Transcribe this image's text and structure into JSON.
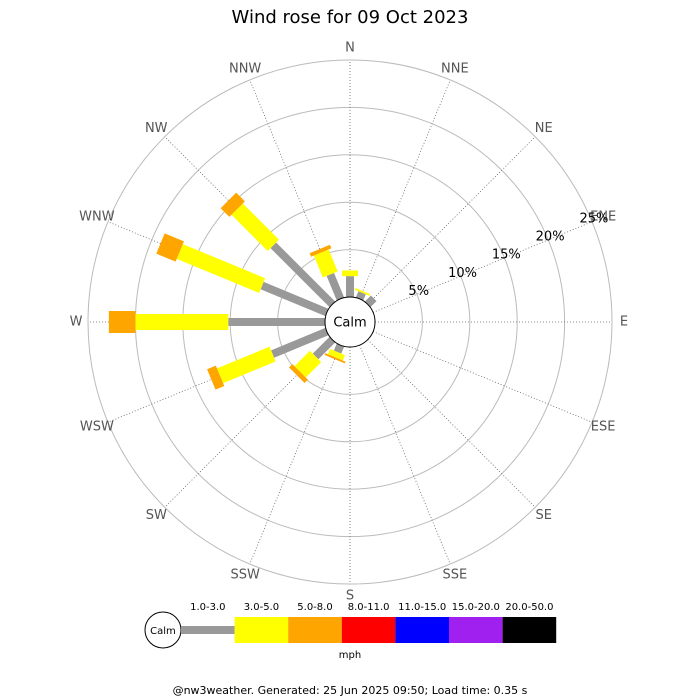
{
  "chart_data": {
    "type": "windrose",
    "title": "Wind rose for 09 Oct 2023",
    "calm_label": "Calm",
    "categories": [
      "N",
      "NNE",
      "NE",
      "ENE",
      "E",
      "ESE",
      "SE",
      "SSE",
      "S",
      "SSW",
      "SW",
      "WSW",
      "W",
      "WNW",
      "NW",
      "NNW"
    ],
    "series": [
      {
        "name": "1.0-3.0",
        "color": "#999999",
        "values": [
          2.2,
          0.7,
          0.9,
          0,
          0,
          0,
          0,
          0,
          0,
          0.8,
          2.5,
          6.2,
          10.2,
          7.4,
          8.8,
          2.8
        ]
      },
      {
        "name": "3.0-5.0",
        "color": "#ffff00",
        "values": [
          0.6,
          0.2,
          0,
          0,
          0,
          0,
          0,
          0,
          0,
          0.6,
          2.3,
          6.0,
          9.8,
          9.4,
          5.4,
          2.5
        ]
      },
      {
        "name": "5.0-8.0",
        "color": "#ffa500",
        "values": [
          0,
          0,
          0,
          0,
          0,
          0,
          0,
          0,
          0,
          0.2,
          0.5,
          1.0,
          2.8,
          2.2,
          1.3,
          0.4
        ]
      },
      {
        "name": "8.0-11.0",
        "color": "#ff0000",
        "values": [
          0,
          0,
          0,
          0,
          0,
          0,
          0,
          0,
          0,
          0,
          0,
          0,
          0,
          0,
          0,
          0
        ]
      },
      {
        "name": "11.0-15.0",
        "color": "#0000ff",
        "values": [
          0,
          0,
          0,
          0,
          0,
          0,
          0,
          0,
          0,
          0,
          0,
          0,
          0,
          0,
          0,
          0
        ]
      },
      {
        "name": "15.0-20.0",
        "color": "#a020f0",
        "values": [
          0,
          0,
          0,
          0,
          0,
          0,
          0,
          0,
          0,
          0,
          0,
          0,
          0,
          0,
          0,
          0
        ]
      },
      {
        "name": "20.0-50.0",
        "color": "#000000",
        "values": [
          0,
          0,
          0,
          0,
          0,
          0,
          0,
          0,
          0,
          0,
          0,
          0,
          0,
          0,
          0,
          0
        ]
      }
    ],
    "rlim": [
      0,
      25
    ],
    "rticks": [
      {
        "value": 5,
        "label": "5%"
      },
      {
        "value": 10,
        "label": "10%"
      },
      {
        "value": 15,
        "label": "15%"
      },
      {
        "value": 20,
        "label": "20%"
      },
      {
        "value": 25,
        "label": "25%"
      }
    ],
    "legend_unit": "mph",
    "footer": "@nw3weather. Generated: 25 Jun 2025 09:50; Load time: 0.35 s"
  }
}
